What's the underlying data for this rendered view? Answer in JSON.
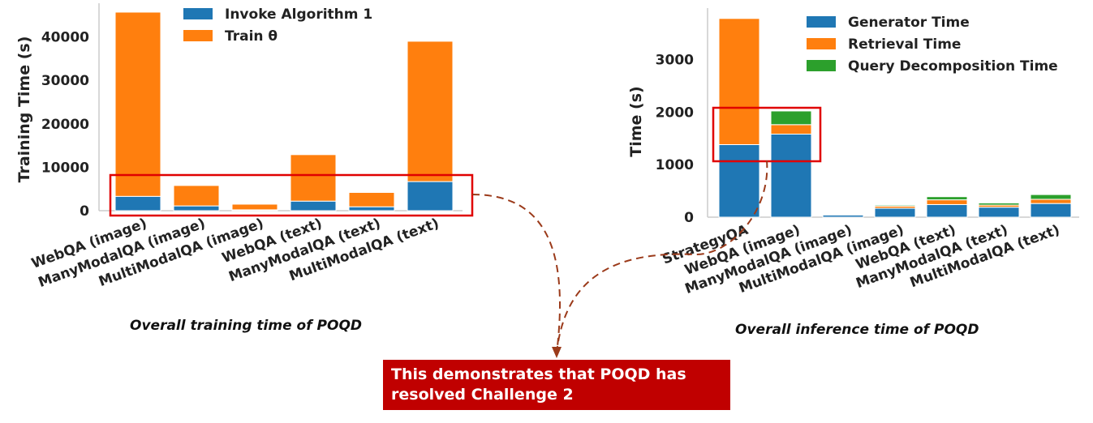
{
  "captions": {
    "left": "Overall training time of POQD",
    "right": "Overall inference time of POQD"
  },
  "callout": "This demonstrates  that POQD has\nresolved Challenge 2",
  "colors": {
    "blue": "#1f77b4",
    "orange": "#ff7f0e",
    "green": "#2ca02c",
    "highlight": "#e00000",
    "arrow": "#9b3a1a"
  },
  "chart_data": [
    {
      "type": "bar",
      "stacked": true,
      "ylabel": "Training Time (s)",
      "xlabel": "",
      "ylim": [
        0,
        47000
      ],
      "yticks": [
        0,
        10000,
        20000,
        30000,
        40000
      ],
      "categories": [
        "WebQA (image)",
        "ManyModalQA (image)",
        "MultiModalQA (image)",
        "WebQA (text)",
        "ManyModalQA (text)",
        "MultiModalQA (text)"
      ],
      "series": [
        {
          "name": "Invoke Algorithm 1",
          "color": "#1f77b4",
          "values": [
            3300,
            1100,
            200,
            2200,
            900,
            6700
          ]
        },
        {
          "name": "Train θ",
          "color": "#ff7f0e",
          "values": [
            42400,
            4700,
            1300,
            10700,
            3300,
            32300
          ]
        }
      ],
      "legend": "top-center",
      "grid": false
    },
    {
      "type": "bar",
      "stacked": true,
      "ylabel": "Time (s)",
      "xlabel": "",
      "ylim": [
        0,
        3900
      ],
      "yticks": [
        0,
        1000,
        2000,
        3000
      ],
      "categories": [
        "StrategyQA",
        "WebQA (image)",
        "ManyModalQA (image)",
        "MultiModalQA (image)",
        "WebQA (text)",
        "ManyModalQA (text)",
        "MultiModalQA (text)"
      ],
      "series": [
        {
          "name": "Generator Time",
          "color": "#1f77b4",
          "values": [
            1380,
            1580,
            40,
            170,
            240,
            190,
            260
          ]
        },
        {
          "name": "Retrieval Time",
          "color": "#ff7f0e",
          "values": [
            2400,
            180,
            0,
            40,
            90,
            40,
            80
          ]
        },
        {
          "name": "Query Decomposition Time",
          "color": "#2ca02c",
          "values": [
            0,
            260,
            0,
            20,
            60,
            40,
            90
          ]
        }
      ],
      "legend": "top-right",
      "grid": false
    }
  ]
}
